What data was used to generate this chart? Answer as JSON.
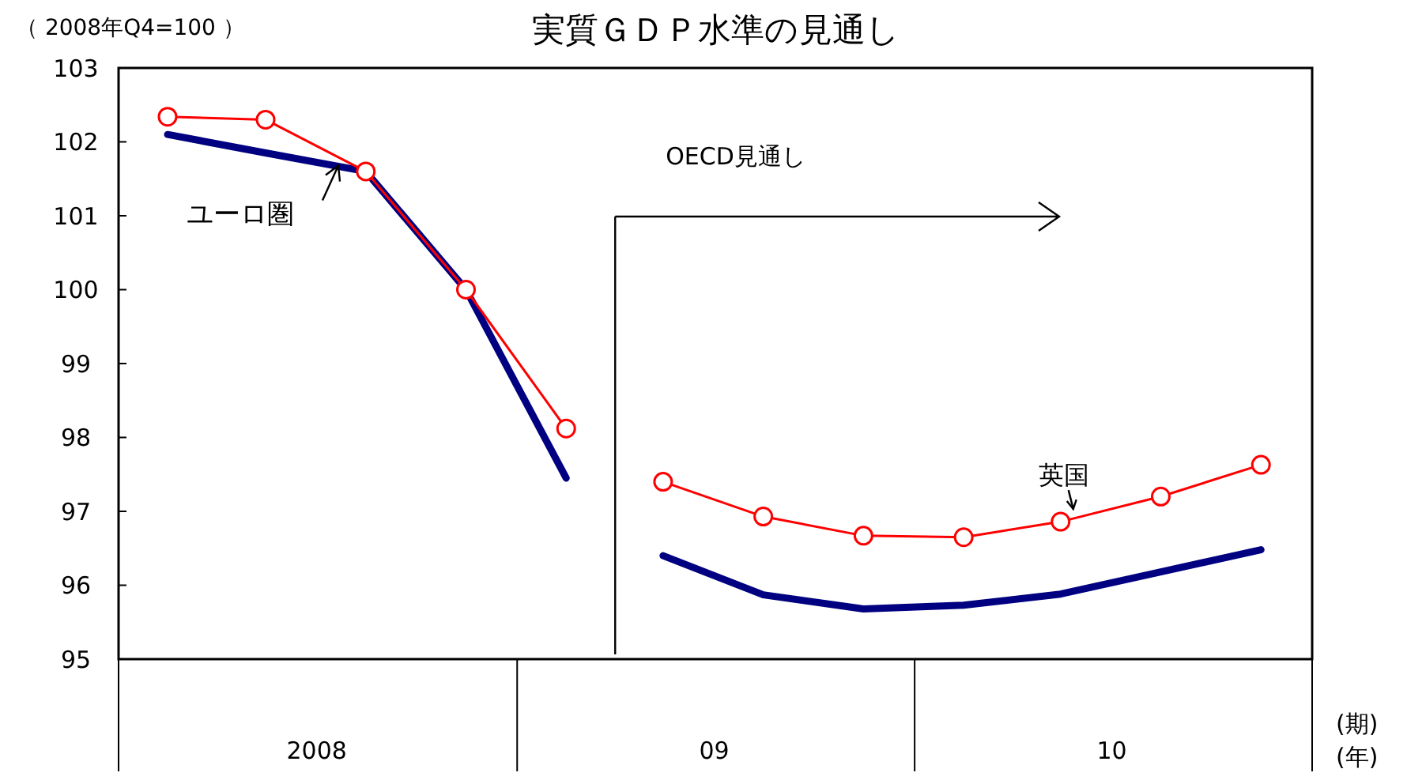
{
  "chart_data": {
    "type": "line",
    "title": "実質ＧＤＰ水準の見通し",
    "ylabel": "（ 2008年Q4=100 ）",
    "xlim": [
      "2008-01-01",
      "2011-01-01"
    ],
    "xticks": [
      {
        "value": "2008-01-01",
        "label": null
      },
      {
        "value": "2008-07-01",
        "label": "2008"
      },
      {
        "value": "2009-01-01",
        "label": null
      },
      {
        "value": "2009-07-01",
        "label": "09"
      },
      {
        "value": "2010-01-01",
        "label": null
      },
      {
        "value": "2010-07-01",
        "label": "10"
      },
      {
        "value": "2011-01-01",
        "label": null
      }
    ],
    "ylim": [
      95,
      103
    ],
    "yticks": [
      95,
      96,
      97,
      98,
      99,
      100,
      101,
      102,
      103
    ],
    "grid": false,
    "legend": false,
    "series": [
      {
        "name": "ユーロ圏",
        "color": "#000080",
        "marker": "none",
        "x": [
          "2008-02-15",
          "2008-05-15",
          "2008-08-15",
          "2008-11-15",
          "2009-02-15"
        ],
        "values": [
          102.1,
          101.85,
          101.6,
          100.0,
          97.45
        ]
      },
      {
        "color": "#000080",
        "marker": "none",
        "x": [
          "2009-05-15",
          "2009-08-15",
          "2009-11-15",
          "2010-02-15",
          "2010-05-15",
          "2010-08-15",
          "2010-11-15"
        ],
        "values": [
          96.4,
          95.87,
          95.68,
          95.73,
          95.88,
          96.18,
          96.48
        ]
      },
      {
        "color": "#ff0000",
        "marker": "circle",
        "x": [
          "2008-02-15",
          "2008-05-15",
          "2008-08-15",
          "2008-11-15",
          "2009-02-15"
        ],
        "values": [
          102.34,
          102.3,
          101.6,
          100.0,
          98.12
        ]
      },
      {
        "name": "英国",
        "color": "#ff0000",
        "marker": "circle",
        "x": [
          "2009-05-15",
          "2009-08-15",
          "2009-11-15",
          "2010-02-15",
          "2010-05-15",
          "2010-08-15",
          "2010-11-15"
        ],
        "values": [
          97.4,
          96.93,
          96.67,
          96.65,
          96.86,
          97.2,
          97.63
        ]
      }
    ],
    "ref_lines": [
      {
        "axis": "x",
        "value": "2009-04-01",
        "label": "OECD見通し"
      }
    ],
    "annotations": [
      "(期)",
      "(年)"
    ]
  }
}
